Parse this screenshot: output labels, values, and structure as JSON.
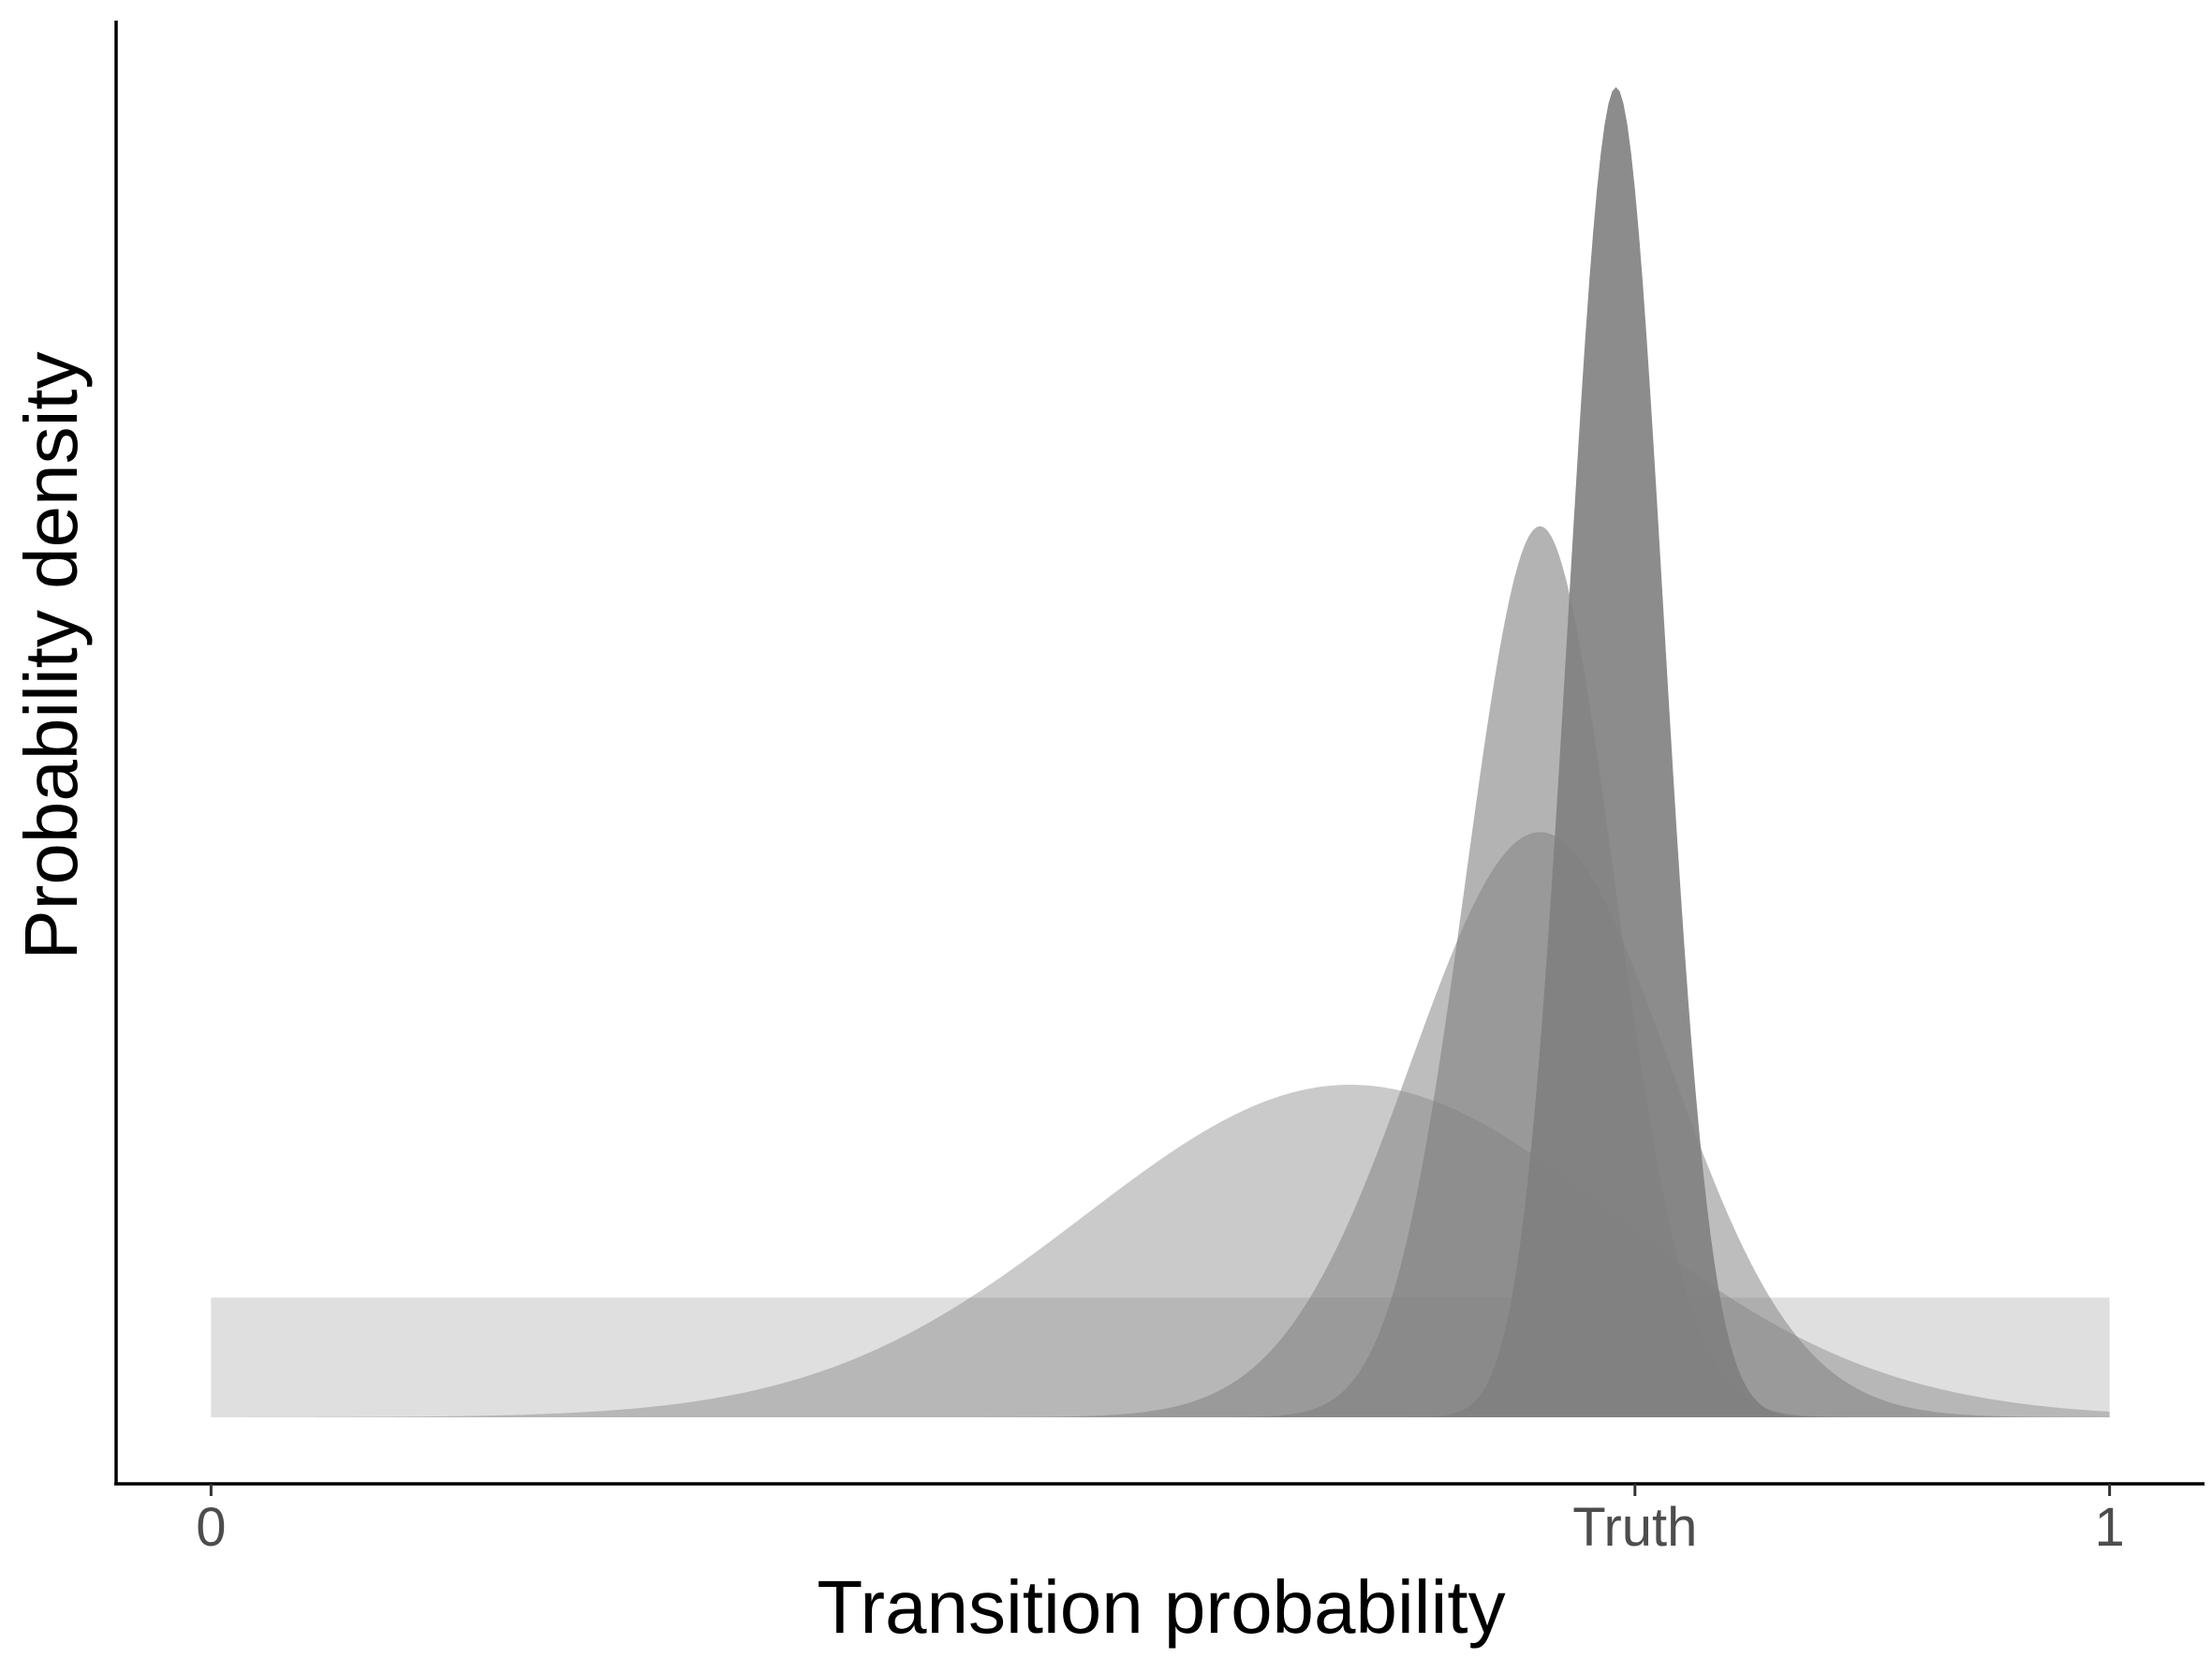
{
  "chart_data": {
    "type": "area",
    "title": "",
    "xlabel": "Transition probability",
    "ylabel": "Probability density",
    "xlim": [
      -0.05,
      1.05
    ],
    "ylim": [
      -0.05,
      1.05
    ],
    "x_ticks": [
      {
        "value": 0,
        "label": "0"
      },
      {
        "value": 0.75,
        "label": "Truth"
      },
      {
        "value": 1,
        "label": "1"
      }
    ],
    "y_ticks": [],
    "grid": false,
    "legend": "none",
    "fill_color": "#808080",
    "series": [
      {
        "kind": "uniform",
        "from": 0,
        "to": 1,
        "density": 0.09,
        "opacity": 0.25
      },
      {
        "kind": "normal",
        "mean": 0.6,
        "sd": 0.14,
        "peak": 0.25,
        "opacity": 0.42
      },
      {
        "kind": "normal",
        "mean": 0.7,
        "sd": 0.068,
        "peak": 0.44,
        "opacity": 0.52
      },
      {
        "kind": "normal",
        "mean": 0.7,
        "sd": 0.039,
        "peak": 0.67,
        "opacity": 0.6
      },
      {
        "kind": "normal",
        "mean": 0.74,
        "sd": 0.025,
        "peak": 1.0,
        "opacity": 0.9
      }
    ]
  }
}
